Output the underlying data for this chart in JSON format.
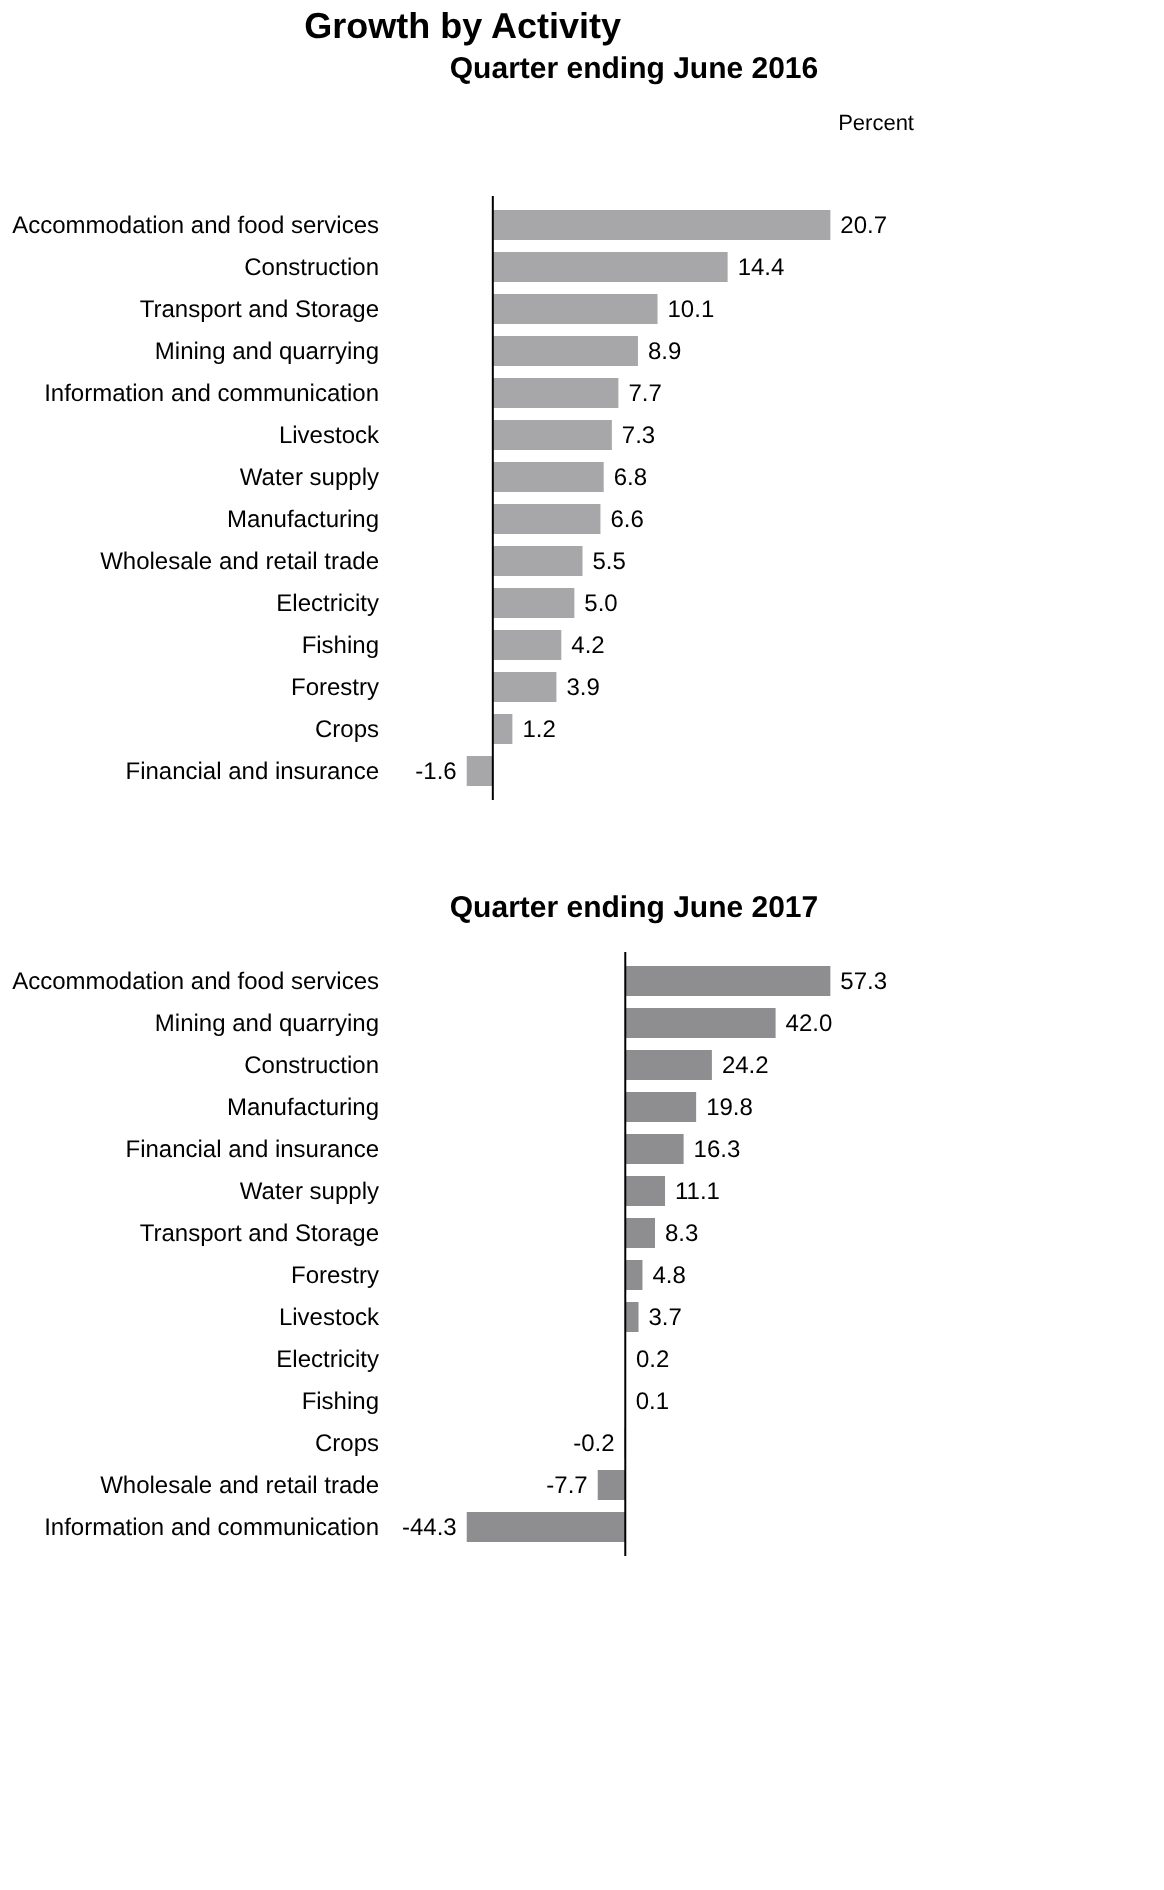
{
  "chart_data": [
    {
      "type": "bar",
      "orientation": "horizontal",
      "title": "Quarter ending June 2016",
      "annotations": [
        "Growth by Activity",
        "Percent"
      ],
      "categories": [
        "Accommodation and food services",
        "Construction",
        "Transport and Storage",
        "Mining and quarrying",
        "Information and communication",
        "Livestock",
        "Water supply",
        "Manufacturing",
        "Wholesale and retail trade",
        "Electricity",
        "Fishing",
        "Forestry",
        "Crops",
        "Financial and insurance"
      ],
      "series": [
        {
          "color": "#a7a7a9",
          "values": [
            20.7,
            14.4,
            10.1,
            8.9,
            7.7,
            7.3,
            6.8,
            6.6,
            5.5,
            5.0,
            4.2,
            3.9,
            1.2,
            -1.6
          ],
          "value_labels": [
            "20.7",
            "14.4",
            "10.1",
            "8.9",
            "7.7",
            "7.3",
            "6.8",
            "6.6",
            "5.5",
            "5.0",
            "4.2",
            "3.9",
            "1.2",
            "-1.6"
          ]
        }
      ]
    },
    {
      "type": "bar",
      "orientation": "horizontal",
      "title": "Quarter ending June 2017",
      "categories": [
        "Accommodation and food services",
        "Mining and quarrying",
        "Construction",
        "Manufacturing",
        "Financial and insurance",
        "Water supply",
        "Transport and Storage",
        "Forestry",
        "Livestock",
        "Electricity",
        "Fishing",
        "Crops",
        "Wholesale and retail trade",
        "Information and communication"
      ],
      "series": [
        {
          "color": "#8e8e90",
          "values": [
            57.3,
            42.0,
            24.2,
            19.8,
            16.3,
            11.1,
            8.3,
            4.8,
            3.7,
            0.2,
            0.1,
            -0.2,
            -7.7,
            -44.3
          ],
          "value_labels": [
            "57.3",
            "42.0",
            "24.2",
            "19.8",
            "16.3",
            "11.1",
            "8.3",
            "4.8",
            "3.7",
            "0.2",
            "0.1",
            "-0.2",
            "-7.7",
            "-44.3"
          ]
        }
      ]
    }
  ]
}
